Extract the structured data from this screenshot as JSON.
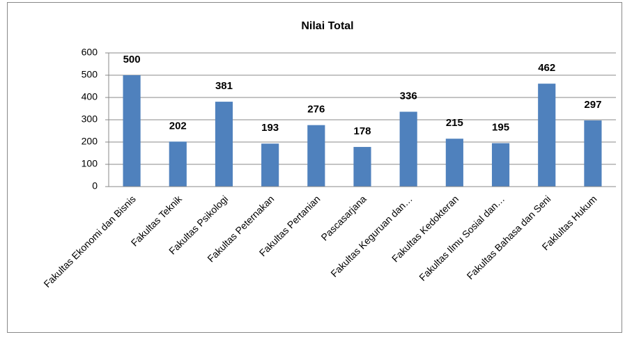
{
  "chart_data": {
    "type": "bar",
    "title": "Nilai Total",
    "categories": [
      "Fakultas Ekonomi dan Bisnis",
      "Fakultas Teknik",
      "Fakultas Psikologi",
      "Fakultas Peternakan",
      "Fakultas Pertanian",
      "Pascasarjana",
      "Fakultas Keguruan dan…",
      "Fakultas Kedokteran",
      "Fakultas Ilmu Sosial dan…",
      "Fakultas Bahasa dan Seni",
      "Faklultas Hukum"
    ],
    "values": [
      500,
      202,
      381,
      193,
      276,
      178,
      336,
      215,
      195,
      462,
      297
    ],
    "color": "#4f81bd",
    "ylim": [
      0,
      600
    ],
    "yticks": [
      0,
      100,
      200,
      300,
      400,
      500,
      600
    ],
    "grid": true
  }
}
